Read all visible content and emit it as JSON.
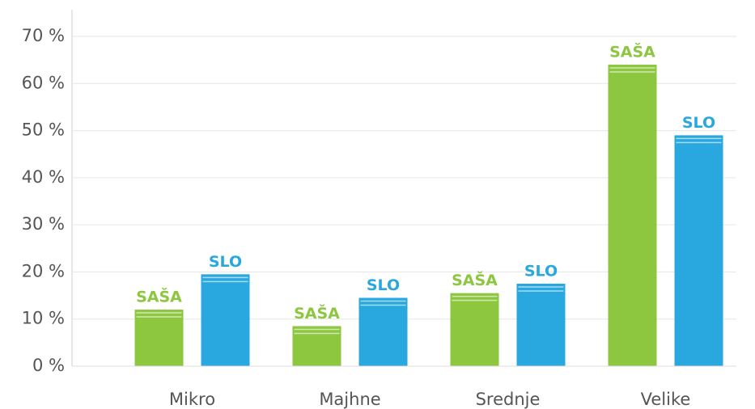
{
  "chart_data": {
    "type": "bar",
    "categories": [
      "Mikro",
      "Majhne",
      "Srednje",
      "Velike"
    ],
    "series": [
      {
        "name": "SAŠA",
        "color": "#8dc63f",
        "values": [
          12,
          8.5,
          15.5,
          64
        ]
      },
      {
        "name": "SLO",
        "color": "#29a8e0",
        "values": [
          19.5,
          14.5,
          17.5,
          49
        ]
      }
    ],
    "ylim": [
      0,
      70
    ],
    "yticks": [
      {
        "value": 0,
        "label": "0 %"
      },
      {
        "value": 10,
        "label": "10 %"
      },
      {
        "value": 20,
        "label": "20 %"
      },
      {
        "value": 30,
        "label": "30 %"
      },
      {
        "value": 40,
        "label": "40 %"
      },
      {
        "value": 50,
        "label": "50 %"
      },
      {
        "value": 60,
        "label": "60 %"
      },
      {
        "value": 70,
        "label": "70 %"
      }
    ],
    "grid": true
  }
}
